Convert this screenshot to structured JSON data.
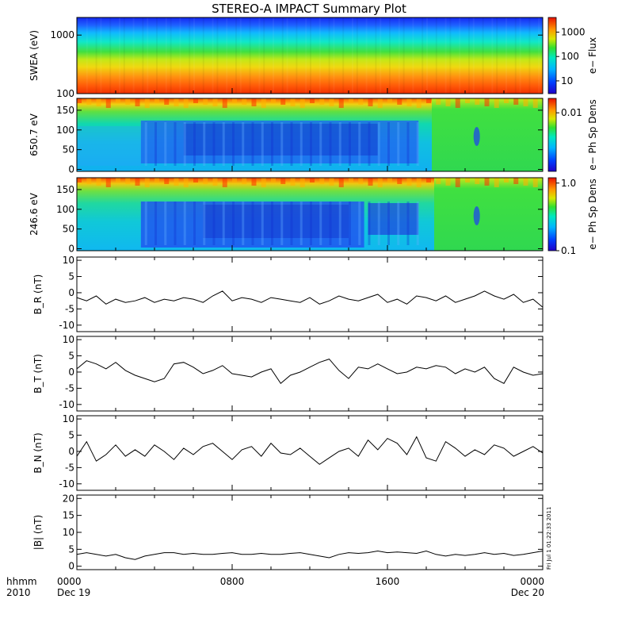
{
  "title": "STEREO-A IMPACT Summary Plot",
  "stamp": "Fri Jul 1 01:22:33 2011",
  "time_axis": {
    "corner_top": "hhmm",
    "corner_bottom": "2010",
    "ticks": [
      {
        "top": "0000",
        "bottom": "Dec 19",
        "hour": 0
      },
      {
        "top": "0800",
        "bottom": "",
        "hour": 8
      },
      {
        "top": "1600",
        "bottom": "",
        "hour": 16
      },
      {
        "top": "0000",
        "bottom": "Dec 20",
        "hour": 24
      }
    ]
  },
  "spectrograms": [
    {
      "ylabel": "SWEA (eV)",
      "ylog": true,
      "ylim": [
        100,
        2000
      ],
      "yticks": [
        {
          "label": "1000",
          "value": 1000
        },
        {
          "label": "100",
          "value": 100
        }
      ],
      "colorbar": {
        "label": "e− Flux",
        "log": true,
        "range": [
          3,
          4000
        ],
        "ticks": [
          {
            "label": "1000",
            "value": 1000
          },
          {
            "label": "100",
            "value": 100
          },
          {
            "label": "10",
            "value": 10
          }
        ]
      }
    },
    {
      "ylabel": "650.7 eV",
      "ylog": false,
      "ylim": [
        -5,
        180
      ],
      "yticks": [
        {
          "label": "150",
          "value": 150
        },
        {
          "label": "100",
          "value": 100
        },
        {
          "label": "50",
          "value": 50
        },
        {
          "label": "0",
          "value": 0
        }
      ],
      "colorbar": {
        "label": "e− Ph Sp Dens",
        "log": true,
        "range": [
          0.0006,
          0.02
        ],
        "ticks": [
          {
            "label": "0.01",
            "value": 0.01
          }
        ]
      }
    },
    {
      "ylabel": "246.6 eV",
      "ylog": false,
      "ylim": [
        -5,
        180
      ],
      "yticks": [
        {
          "label": "150",
          "value": 150
        },
        {
          "label": "100",
          "value": 100
        },
        {
          "label": "50",
          "value": 50
        },
        {
          "label": "0",
          "value": 0
        }
      ],
      "colorbar": {
        "label": "e− Ph Sp Dens",
        "log": true,
        "range": [
          0.1,
          1.2
        ],
        "ticks": [
          {
            "label": "1.0",
            "value": 1.0
          },
          {
            "label": "0.1",
            "value": 0.1
          }
        ]
      }
    }
  ],
  "chart_data": [
    {
      "type": "line",
      "name": "B_R",
      "ylabel": "B_R (nT)",
      "ylim": [
        -12,
        11
      ],
      "yticks": [
        {
          "label": "10",
          "value": 10
        },
        {
          "label": "5",
          "value": 5
        },
        {
          "label": "0",
          "value": 0
        },
        {
          "label": "-5",
          "value": -5
        },
        {
          "label": "-10",
          "value": -10
        }
      ],
      "x_hours": [
        0,
        0.5,
        1,
        1.5,
        2,
        2.5,
        3,
        3.5,
        4,
        4.5,
        5,
        5.5,
        6,
        6.5,
        7,
        7.5,
        8,
        8.5,
        9,
        9.5,
        10,
        10.5,
        11,
        11.5,
        12,
        12.5,
        13,
        13.5,
        14,
        14.5,
        15,
        15.5,
        16,
        16.5,
        17,
        17.5,
        18,
        18.5,
        19,
        19.5,
        20,
        20.5,
        21,
        21.5,
        22,
        22.5,
        23,
        23.5,
        24
      ],
      "y": [
        -1.5,
        -2.5,
        -1,
        -3.5,
        -2,
        -3,
        -2.5,
        -1.5,
        -3,
        -2,
        -2.5,
        -1.5,
        -2,
        -3,
        -1,
        0.5,
        -2.5,
        -1.5,
        -2,
        -3,
        -1.5,
        -2,
        -2.5,
        -3,
        -1.5,
        -3.5,
        -2.5,
        -1,
        -2,
        -2.5,
        -1.5,
        -0.5,
        -3,
        -2,
        -3.5,
        -1,
        -1.5,
        -2.5,
        -1,
        -3,
        -2,
        -1,
        0.5,
        -1,
        -2,
        -0.5,
        -3,
        -2,
        -4.5
      ]
    },
    {
      "type": "line",
      "name": "B_T",
      "ylabel": "B_T (nT)",
      "ylim": [
        -12,
        11
      ],
      "yticks": [
        {
          "label": "10",
          "value": 10
        },
        {
          "label": "5",
          "value": 5
        },
        {
          "label": "0",
          "value": 0
        },
        {
          "label": "-5",
          "value": -5
        },
        {
          "label": "-10",
          "value": -10
        }
      ],
      "x_hours": [
        0,
        0.5,
        1,
        1.5,
        2,
        2.5,
        3,
        3.5,
        4,
        4.5,
        5,
        5.5,
        6,
        6.5,
        7,
        7.5,
        8,
        8.5,
        9,
        9.5,
        10,
        10.5,
        11,
        11.5,
        12,
        12.5,
        13,
        13.5,
        14,
        14.5,
        15,
        15.5,
        16,
        16.5,
        17,
        17.5,
        18,
        18.5,
        19,
        19.5,
        20,
        20.5,
        21,
        21.5,
        22,
        22.5,
        23,
        23.5,
        24
      ],
      "y": [
        1,
        3.5,
        2.5,
        1,
        3,
        0.5,
        -1,
        -2,
        -3,
        -2,
        2.5,
        3,
        1.5,
        -0.5,
        0.5,
        2,
        -0.5,
        -1,
        -1.5,
        0,
        1,
        -3.5,
        -1,
        0,
        1.5,
        3,
        4,
        0.5,
        -2,
        1.5,
        1,
        2.5,
        1,
        -0.5,
        0,
        1.5,
        1,
        2,
        1.5,
        -0.5,
        1,
        0,
        1.5,
        -2,
        -3.5,
        1.5,
        0,
        -1,
        -0.5
      ]
    },
    {
      "type": "line",
      "name": "B_N",
      "ylabel": "B_N (nT)",
      "ylim": [
        -12,
        11
      ],
      "yticks": [
        {
          "label": "10",
          "value": 10
        },
        {
          "label": "5",
          "value": 5
        },
        {
          "label": "0",
          "value": 0
        },
        {
          "label": "-5",
          "value": -5
        },
        {
          "label": "-10",
          "value": -10
        }
      ],
      "x_hours": [
        0,
        0.5,
        1,
        1.5,
        2,
        2.5,
        3,
        3.5,
        4,
        4.5,
        5,
        5.5,
        6,
        6.5,
        7,
        7.5,
        8,
        8.5,
        9,
        9.5,
        10,
        10.5,
        11,
        11.5,
        12,
        12.5,
        13,
        13.5,
        14,
        14.5,
        15,
        15.5,
        16,
        16.5,
        17,
        17.5,
        18,
        18.5,
        19,
        19.5,
        20,
        20.5,
        21,
        21.5,
        22,
        22.5,
        23,
        23.5,
        24
      ],
      "y": [
        -1.5,
        3,
        -3,
        -1,
        2,
        -1.5,
        0.5,
        -1.5,
        2,
        0,
        -2.5,
        1,
        -1,
        1.5,
        2.5,
        0,
        -2.5,
        0.5,
        1.5,
        -1.5,
        2.5,
        -0.5,
        -1,
        1,
        -1.5,
        -4,
        -2,
        0,
        1,
        -1.5,
        3.5,
        0.5,
        4,
        2.5,
        -1,
        4.5,
        -2,
        -3,
        3,
        1,
        -1.5,
        0.5,
        -1,
        2,
        1,
        -1.5,
        0,
        1.5,
        -0.5
      ]
    },
    {
      "type": "line",
      "name": "|B|",
      "ylabel": "|B| (nT)",
      "ylim": [
        -1,
        21
      ],
      "yticks": [
        {
          "label": "20",
          "value": 20
        },
        {
          "label": "15",
          "value": 15
        },
        {
          "label": "10",
          "value": 10
        },
        {
          "label": "5",
          "value": 5
        },
        {
          "label": "0",
          "value": 0
        }
      ],
      "x_hours": [
        0,
        0.5,
        1,
        1.5,
        2,
        2.5,
        3,
        3.5,
        4,
        4.5,
        5,
        5.5,
        6,
        6.5,
        7,
        7.5,
        8,
        8.5,
        9,
        9.5,
        10,
        10.5,
        11,
        11.5,
        12,
        12.5,
        13,
        13.5,
        14,
        14.5,
        15,
        15.5,
        16,
        16.5,
        17,
        17.5,
        18,
        18.5,
        19,
        19.5,
        20,
        20.5,
        21,
        21.5,
        22,
        22.5,
        23,
        23.5,
        24
      ],
      "y": [
        3.5,
        4,
        3.5,
        3,
        3.5,
        2.5,
        2,
        3,
        3.5,
        4,
        4,
        3.5,
        3.8,
        3.5,
        3.5,
        3.8,
        4,
        3.5,
        3.5,
        3.8,
        3.5,
        3.5,
        3.8,
        4,
        3.5,
        3,
        2.5,
        3.5,
        4,
        3.8,
        4,
        4.5,
        4,
        4.2,
        4,
        3.8,
        4.5,
        3.5,
        3,
        3.5,
        3.2,
        3.5,
        4,
        3.5,
        3.8,
        3.2,
        3.5,
        4,
        4.5
      ]
    }
  ]
}
